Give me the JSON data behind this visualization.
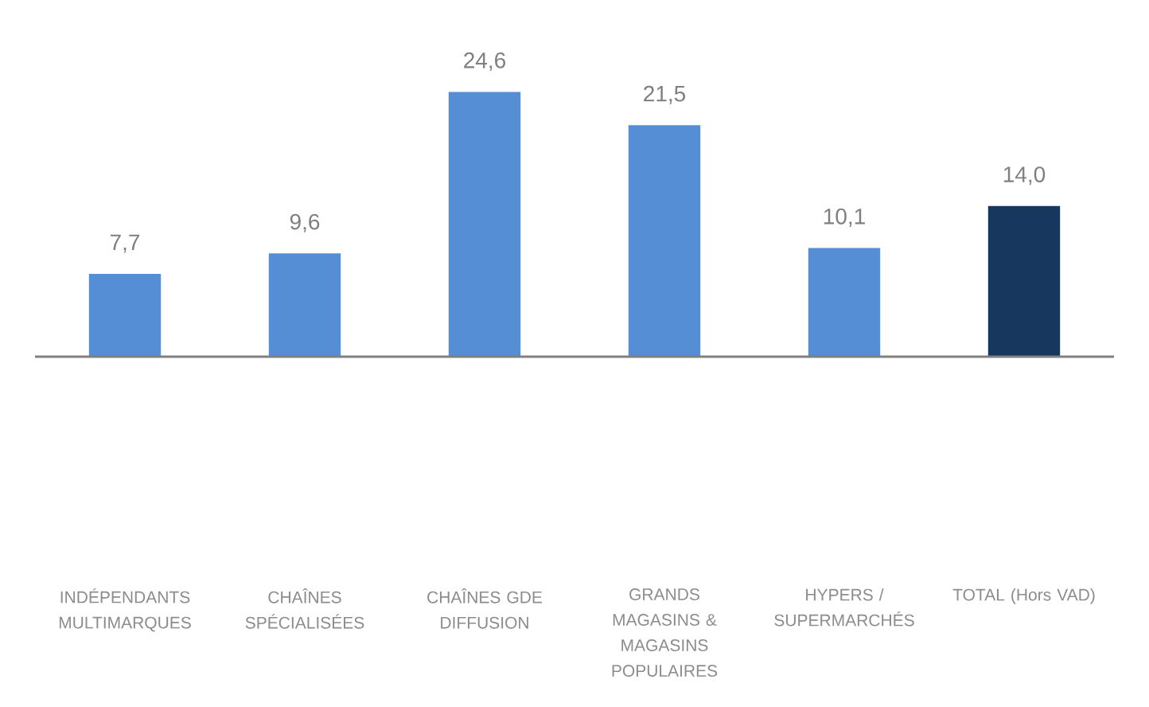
{
  "chart_data": {
    "type": "bar",
    "categories": [
      "INDÉPENDANTS MULTIMARQUES",
      "CHAÎNES SPÉCIALISÉES",
      "CHAÎNES GDE DIFFUSION",
      "GRANDS MAGASINS & MAGASINS POPULAIRES",
      "HYPERS / SUPERMARCHÉS",
      "TOTAL (Hors VAD)"
    ],
    "values": [
      7.7,
      9.6,
      24.6,
      21.5,
      10.1,
      14.0
    ],
    "value_labels": [
      "7,7",
      "9,6",
      "24,6",
      "21,5",
      "10,1",
      "14,0"
    ],
    "colors": [
      "#558ed5",
      "#558ed5",
      "#558ed5",
      "#558ed5",
      "#558ed5",
      "#17375e"
    ],
    "tick_labels": "x"
  }
}
